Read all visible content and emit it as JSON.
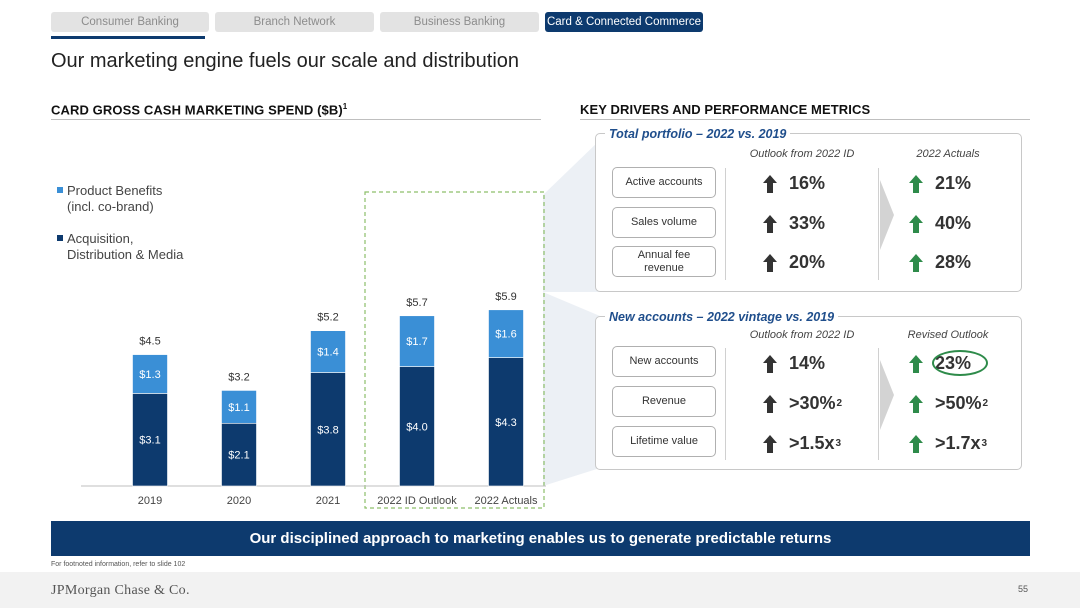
{
  "tabs": [
    {
      "label": "Consumer Banking",
      "active": false
    },
    {
      "label": "Branch Network",
      "active": false
    },
    {
      "label": "Business Banking",
      "active": false
    },
    {
      "label": "Card & Connected Commerce",
      "active": true
    }
  ],
  "page_title": "Our marketing engine fuels our scale and distribution",
  "left_section": {
    "title": "CARD GROSS CASH MARKETING SPEND ($B)",
    "footnote_marker": "1"
  },
  "right_section": {
    "title": "KEY DRIVERS AND PERFORMANCE METRICS"
  },
  "chart_data": {
    "type": "bar",
    "stacked": true,
    "categories": [
      "2019",
      "2020",
      "2021",
      "2022 ID Outlook",
      "2022 Actuals"
    ],
    "series": [
      {
        "name": "Acquisition, Distribution & Media",
        "name_lines": [
          "Acquisition,",
          "Distribution & Media"
        ],
        "values": [
          3.1,
          2.1,
          3.8,
          4.0,
          4.3
        ],
        "labels": [
          "$3.1",
          "$2.1",
          "$3.8",
          "$4.0",
          "$4.3"
        ],
        "color": "#0d3a6e"
      },
      {
        "name": "Product Benefits (incl. co-brand)",
        "name_lines": [
          "Product Benefits",
          "(incl. co-brand)"
        ],
        "values": [
          1.3,
          1.1,
          1.4,
          1.7,
          1.6
        ],
        "labels": [
          "$1.3",
          "$1.1",
          "$1.4",
          "$1.7",
          "$1.6"
        ],
        "color": "#3a8fd6"
      }
    ],
    "totals": [
      "$4.5",
      "$3.2",
      "$5.2",
      "$5.7",
      "$5.9"
    ],
    "ylim": [
      0,
      6.6
    ],
    "highlighted_categories": [
      "2022 ID Outlook",
      "2022 Actuals"
    ],
    "legend_position": "top-left"
  },
  "total_portfolio": {
    "title": "Total portfolio – 2022 vs. 2019",
    "col1_header": "Outlook from 2022 ID",
    "col2_header": "2022 Actuals",
    "rows": [
      {
        "label": "Active accounts",
        "outlook": "16%",
        "outlook_sup": "",
        "actual": "21%",
        "actual_sup": ""
      },
      {
        "label": "Sales volume",
        "outlook": "33%",
        "outlook_sup": "",
        "actual": "40%",
        "actual_sup": ""
      },
      {
        "label": "Annual fee revenue",
        "outlook": "20%",
        "outlook_sup": "",
        "actual": "28%",
        "actual_sup": ""
      }
    ]
  },
  "new_accounts": {
    "title": "New accounts – 2022 vintage vs. 2019",
    "col1_header": "Outlook from 2022 ID",
    "col2_header": "Revised Outlook",
    "rows": [
      {
        "label": "New accounts",
        "outlook": "14%",
        "outlook_sup": "",
        "actual": "23%",
        "actual_sup": ""
      },
      {
        "label": "Revenue",
        "outlook": ">30%",
        "outlook_sup": "2",
        "actual": ">50%",
        "actual_sup": "2"
      },
      {
        "label": "Lifetime value",
        "outlook": ">1.5x",
        "outlook_sup": "3",
        "actual": ">1.7x",
        "actual_sup": "3"
      }
    ]
  },
  "colors": {
    "navy": "#0d3a6e",
    "light_blue": "#3a8fd6",
    "up_dark": "#333333",
    "up_green": "#2e8b4a",
    "highlight_dash": "#8dbf6a"
  },
  "icons": {
    "outlook_arrow": "arrow-up-icon",
    "actual_arrow": "arrow-up-green-icon"
  },
  "callout": "Our disciplined approach to marketing enables us to generate predictable returns",
  "footnote": "For footnoted information, refer to slide 102",
  "logo": "JPMorgan Chase & Co.",
  "page_number": "55"
}
